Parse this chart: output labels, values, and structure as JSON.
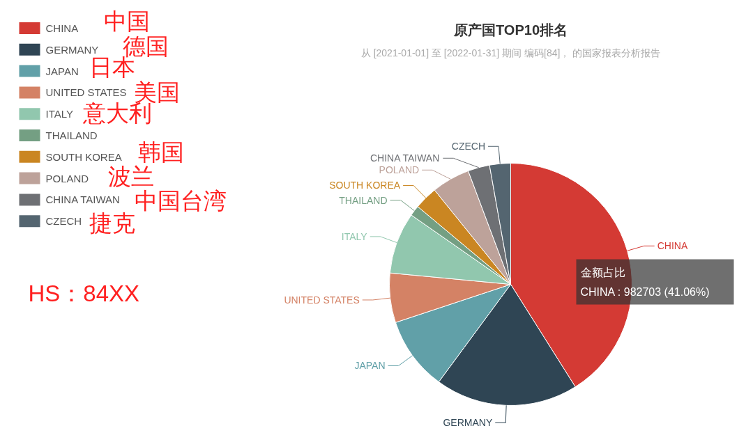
{
  "chart_data": {
    "type": "pie",
    "title": "原产国TOP10排名",
    "subtitle": "从 [2021-01-01] 至 [2022-01-31] 期间 编码[84]， 的国家报表分析报告",
    "categories": [
      "CHINA",
      "GERMANY",
      "JAPAN",
      "UNITED STATES",
      "ITALY",
      "THAILAND",
      "SOUTH KOREA",
      "POLAND",
      "CHINA TAIWAN",
      "CZECH"
    ],
    "values": [
      41.06,
      19.04,
      9.8,
      6.6,
      8.2,
      1.4,
      3.1,
      5.1,
      2.9,
      2.8
    ],
    "colors": [
      "#d43a34",
      "#2f4554",
      "#61a0a8",
      "#d48265",
      "#91c7ae",
      "#749f83",
      "#ca8622",
      "#bda29a",
      "#6e7074",
      "#546570"
    ],
    "legend": "top left",
    "annotations": [
      "中国",
      "德国",
      "日本",
      "美国",
      "意大利",
      "韩国",
      "波兰",
      "中国台湾",
      "捷克",
      "HS：84XX",
      "金额占比",
      "CHINA : 982703 (41.06%)"
    ]
  }
}
